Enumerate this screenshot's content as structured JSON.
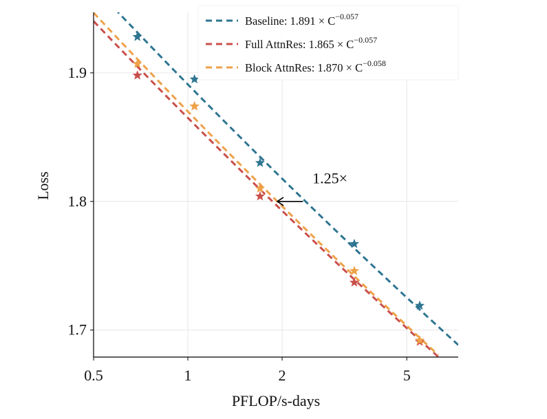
{
  "chart_data": {
    "type": "scatter",
    "title": "",
    "xlabel": "PFLOP/s-days",
    "ylabel": "Loss",
    "xscale": "log",
    "xlim": [
      0.5,
      7.3
    ],
    "ylim": [
      1.679,
      1.947
    ],
    "xticks": [
      {
        "value": 0.5,
        "label": "0.5"
      },
      {
        "value": 1,
        "label": "1"
      },
      {
        "value": 2,
        "label": "2"
      },
      {
        "value": 5,
        "label": "5"
      }
    ],
    "yticks": [
      {
        "value": 1.7,
        "label": "1.7"
      },
      {
        "value": 1.8,
        "label": "1.8"
      },
      {
        "value": 1.9,
        "label": "1.9"
      }
    ],
    "grid": true,
    "legend_position": "top-right",
    "series": [
      {
        "name": "Baseline: 1.891 × C",
        "exp": "−0.057",
        "color": "#2e7591",
        "fit": {
          "coef": 1.891,
          "exponent": -0.057,
          "x_range": [
            0.5,
            7.3
          ]
        },
        "x": [
          0.69,
          1.05,
          1.7,
          3.4,
          5.5
        ],
        "y": [
          1.928,
          1.895,
          1.83,
          1.767,
          1.719
        ]
      },
      {
        "name": "Full AttnRes: 1.865 × C",
        "exp": "−0.057",
        "color": "#c94f4b",
        "fit": {
          "coef": 1.865,
          "exponent": -0.057,
          "x_range": [
            0.5,
            6.3
          ]
        },
        "x": [
          0.69,
          1.05,
          1.7,
          3.4,
          5.5
        ],
        "y": [
          1.898,
          1.874,
          1.804,
          1.737,
          1.691
        ]
      },
      {
        "name": "Block AttnRes: 1.870 × C",
        "exp": "−0.058",
        "color": "#eea149",
        "fit": {
          "coef": 1.87,
          "exponent": -0.058,
          "x_range": [
            0.5,
            6.3
          ]
        },
        "x": [
          0.69,
          1.05,
          1.7,
          3.4,
          5.5
        ],
        "y": [
          1.907,
          1.874,
          1.81,
          1.746,
          1.692
        ]
      }
    ],
    "annotations": [
      {
        "text": "1.25×",
        "arrow_from": [
          2.33,
          1.8
        ],
        "arrow_to": [
          1.93,
          1.8
        ],
        "text_at": [
          2.5,
          1.814
        ]
      }
    ]
  }
}
